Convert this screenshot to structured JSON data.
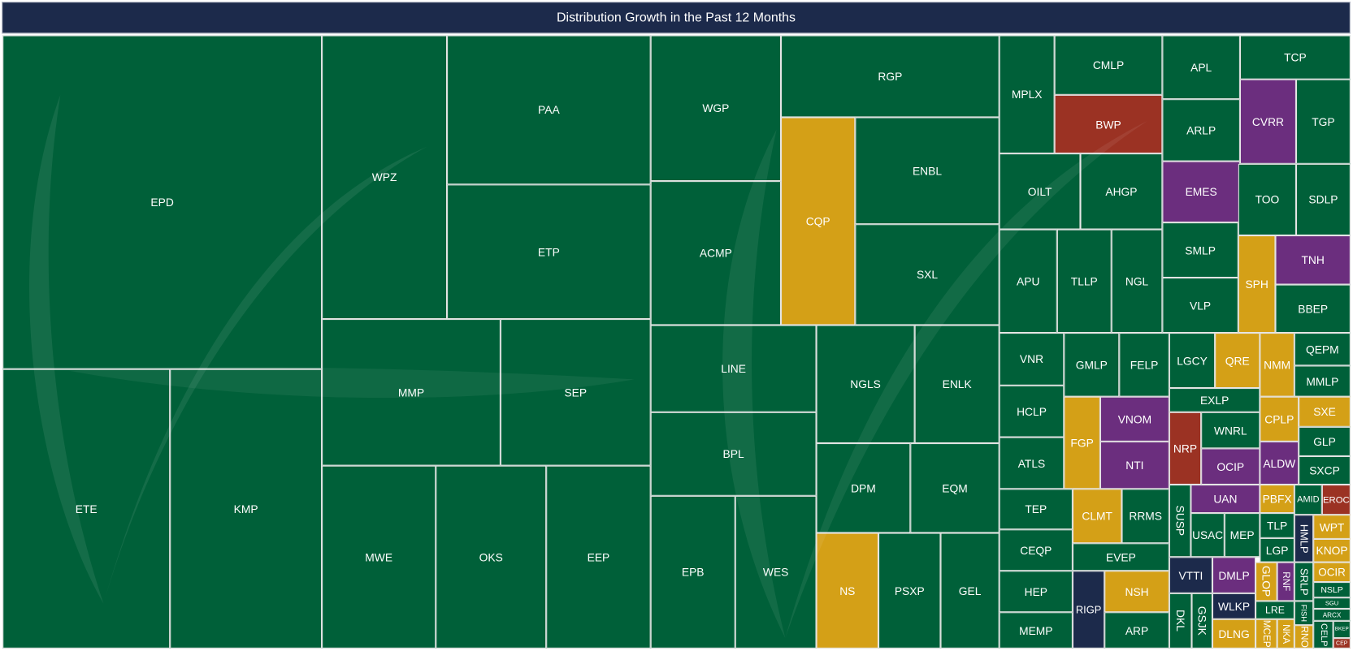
{
  "chart_data": {
    "type": "treemap",
    "title": "Distribution Growth in the Past 12 Months",
    "colors": {
      "green": "#006039",
      "gold": "#d4a017",
      "purple": "#6b2e7e",
      "red": "#9b3223",
      "navy": "#1c2a4b"
    },
    "items": [
      {
        "label": "EPD",
        "color": "#006039"
      },
      {
        "label": "ETE",
        "color": "#006039"
      },
      {
        "label": "KMP",
        "color": "#006039"
      },
      {
        "label": "WPZ",
        "color": "#006039"
      },
      {
        "label": "PAA",
        "color": "#006039"
      },
      {
        "label": "ETP",
        "color": "#006039"
      },
      {
        "label": "MMP",
        "color": "#006039"
      },
      {
        "label": "SEP",
        "color": "#006039"
      },
      {
        "label": "MWE",
        "color": "#006039"
      },
      {
        "label": "OKS",
        "color": "#006039"
      },
      {
        "label": "EEP",
        "color": "#006039"
      },
      {
        "label": "WGP",
        "color": "#006039"
      },
      {
        "label": "RGP",
        "color": "#006039"
      },
      {
        "label": "CQP",
        "color": "#d4a017"
      },
      {
        "label": "ENBL",
        "color": "#006039"
      },
      {
        "label": "SXL",
        "color": "#006039"
      },
      {
        "label": "ACMP",
        "color": "#006039"
      },
      {
        "label": "LINE",
        "color": "#006039"
      },
      {
        "label": "BPL",
        "color": "#006039"
      },
      {
        "label": "EPB",
        "color": "#006039"
      },
      {
        "label": "WES",
        "color": "#006039"
      },
      {
        "label": "NGLS",
        "color": "#006039"
      },
      {
        "label": "ENLK",
        "color": "#006039"
      },
      {
        "label": "DPM",
        "color": "#006039"
      },
      {
        "label": "EQM",
        "color": "#006039"
      },
      {
        "label": "NS",
        "color": "#d4a017"
      },
      {
        "label": "PSXP",
        "color": "#006039"
      },
      {
        "label": "GEL",
        "color": "#006039"
      },
      {
        "label": "MPLX",
        "color": "#006039"
      },
      {
        "label": "CMLP",
        "color": "#006039"
      },
      {
        "label": "BWP",
        "color": "#9b3223"
      },
      {
        "label": "OILT",
        "color": "#006039"
      },
      {
        "label": "AHGP",
        "color": "#006039"
      },
      {
        "label": "APU",
        "color": "#006039"
      },
      {
        "label": "TLLP",
        "color": "#006039"
      },
      {
        "label": "NGL",
        "color": "#006039"
      },
      {
        "label": "APL",
        "color": "#006039"
      },
      {
        "label": "ARLP",
        "color": "#006039"
      },
      {
        "label": "EMES",
        "color": "#6b2e7e"
      },
      {
        "label": "SMLP",
        "color": "#006039"
      },
      {
        "label": "VLP",
        "color": "#006039"
      },
      {
        "label": "TCP",
        "color": "#006039"
      },
      {
        "label": "CVRR",
        "color": "#6b2e7e"
      },
      {
        "label": "TGP",
        "color": "#006039"
      },
      {
        "label": "TOO",
        "color": "#006039"
      },
      {
        "label": "SDLP",
        "color": "#006039"
      },
      {
        "label": "SPH",
        "color": "#d4a017"
      },
      {
        "label": "TNH",
        "color": "#6b2e7e"
      },
      {
        "label": "BBEP",
        "color": "#006039"
      },
      {
        "label": "VNR",
        "color": "#006039"
      },
      {
        "label": "HCLP",
        "color": "#006039"
      },
      {
        "label": "ATLS",
        "color": "#006039"
      },
      {
        "label": "GMLP",
        "color": "#006039"
      },
      {
        "label": "FELP",
        "color": "#006039"
      },
      {
        "label": "FGP",
        "color": "#d4a017"
      },
      {
        "label": "VNOM",
        "color": "#6b2e7e"
      },
      {
        "label": "NTI",
        "color": "#6b2e7e"
      },
      {
        "label": "LGCY",
        "color": "#006039"
      },
      {
        "label": "QRE",
        "color": "#d4a017"
      },
      {
        "label": "EXLP",
        "color": "#006039"
      },
      {
        "label": "NRP",
        "color": "#9b3223"
      },
      {
        "label": "WNRL",
        "color": "#006039"
      },
      {
        "label": "OCIP",
        "color": "#6b2e7e"
      },
      {
        "label": "NMM",
        "color": "#d4a017"
      },
      {
        "label": "QEPM",
        "color": "#006039"
      },
      {
        "label": "MMLP",
        "color": "#006039"
      },
      {
        "label": "CPLP",
        "color": "#d4a017"
      },
      {
        "label": "SXE",
        "color": "#d4a017"
      },
      {
        "label": "GLP",
        "color": "#006039"
      },
      {
        "label": "ALDW",
        "color": "#6b2e7e"
      },
      {
        "label": "SXCP",
        "color": "#006039"
      },
      {
        "label": "TEP",
        "color": "#006039"
      },
      {
        "label": "CEQP",
        "color": "#006039"
      },
      {
        "label": "HEP",
        "color": "#006039"
      },
      {
        "label": "MEMP",
        "color": "#006039"
      },
      {
        "label": "CLMT",
        "color": "#d4a017"
      },
      {
        "label": "RRMS",
        "color": "#006039"
      },
      {
        "label": "EVEP",
        "color": "#006039"
      },
      {
        "label": "RIGP",
        "color": "#1c2a4b"
      },
      {
        "label": "NSH",
        "color": "#d4a017"
      },
      {
        "label": "ARP",
        "color": "#006039"
      },
      {
        "label": "SUSP",
        "color": "#006039"
      },
      {
        "label": "UAN",
        "color": "#6b2e7e"
      },
      {
        "label": "USAC",
        "color": "#006039"
      },
      {
        "label": "MEP",
        "color": "#006039"
      },
      {
        "label": "VTTI",
        "color": "#1c2a4b"
      },
      {
        "label": "DMLP",
        "color": "#6b2e7e"
      },
      {
        "label": "DKL",
        "color": "#006039"
      },
      {
        "label": "GSJK",
        "color": "#006039"
      },
      {
        "label": "WLKP",
        "color": "#1c2a4b"
      },
      {
        "label": "DLNG",
        "color": "#d4a017"
      },
      {
        "label": "PBFX",
        "color": "#d4a017"
      },
      {
        "label": "AMID",
        "color": "#006039"
      },
      {
        "label": "EROC",
        "color": "#9b3223"
      },
      {
        "label": "TLP",
        "color": "#006039"
      },
      {
        "label": "LGP",
        "color": "#006039"
      },
      {
        "label": "HMLP",
        "color": "#1c2a4b"
      },
      {
        "label": "WPT",
        "color": "#d4a017"
      },
      {
        "label": "KNOP",
        "color": "#d4a017"
      },
      {
        "label": "GLOP",
        "color": "#d4a017"
      },
      {
        "label": "RNF",
        "color": "#6b2e7e"
      },
      {
        "label": "SRLP",
        "color": "#006039"
      },
      {
        "label": "OCIR",
        "color": "#d4a017"
      },
      {
        "label": "NSLP",
        "color": "#006039"
      },
      {
        "label": "LRE",
        "color": "#006039"
      },
      {
        "label": "FISH",
        "color": "#006039"
      },
      {
        "label": "SGU",
        "color": "#006039"
      },
      {
        "label": "ARCX",
        "color": "#006039"
      },
      {
        "label": "MCEP",
        "color": "#d4a017"
      },
      {
        "label": "NKA",
        "color": "#d4a017"
      },
      {
        "label": "RNO",
        "color": "#d4a017"
      },
      {
        "label": "CELP",
        "color": "#006039"
      },
      {
        "label": "BKEP",
        "color": "#006039"
      },
      {
        "label": "CEP",
        "color": "#9b3223"
      }
    ]
  }
}
